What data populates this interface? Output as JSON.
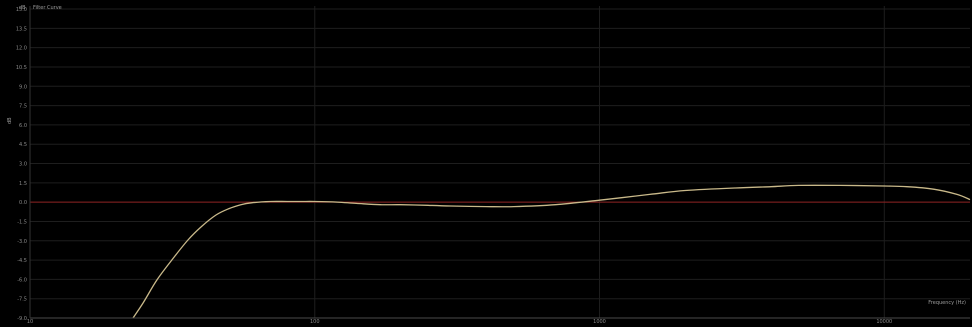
{
  "chart_data": {
    "type": "line",
    "title": "",
    "legend_text": "Filter Curve",
    "ylabel": "dB",
    "top_unit": "dB",
    "y_ticks": [
      "15.0",
      "13.5",
      "12.0",
      "10.5",
      "9.0",
      "7.5",
      "6.0",
      "4.5",
      "3.0",
      "1.5",
      "0.0",
      "-1.5",
      "-3.0",
      "-4.5",
      "-6.0",
      "-7.5",
      "-9.0"
    ],
    "x_ticks": [
      "10",
      "100",
      "1000",
      "10000"
    ],
    "xlim": [
      10,
      20000
    ],
    "ylim": [
      -9,
      15
    ],
    "x_scale": "log",
    "reference_level": 0,
    "grid": true,
    "annotation": "Frequency (Hz)",
    "colors": {
      "background": "#000000",
      "grid": "#1e1e1e",
      "reference_line": "#8b2020",
      "curve": "#c9b98a",
      "axis": "#4a4a4a"
    },
    "series": [
      {
        "x": [
          23,
          25,
          28,
          32,
          36,
          40,
          45,
          50,
          55,
          60,
          70,
          80,
          90,
          100,
          120,
          140,
          170,
          200,
          250,
          300,
          400,
          500,
          700,
          1000,
          1500,
          2000,
          3000,
          4000,
          5000,
          7000,
          10000,
          12000,
          15000,
          18000,
          20000
        ],
        "y": [
          -9.0,
          -7.8,
          -6.0,
          -4.3,
          -2.9,
          -1.9,
          -1.0,
          -0.5,
          -0.2,
          -0.05,
          0.05,
          0.05,
          0.05,
          0.05,
          0.0,
          -0.1,
          -0.2,
          -0.2,
          -0.25,
          -0.3,
          -0.35,
          -0.35,
          -0.2,
          0.15,
          0.6,
          0.9,
          1.1,
          1.2,
          1.3,
          1.3,
          1.25,
          1.2,
          1.0,
          0.6,
          0.2
        ]
      }
    ]
  }
}
